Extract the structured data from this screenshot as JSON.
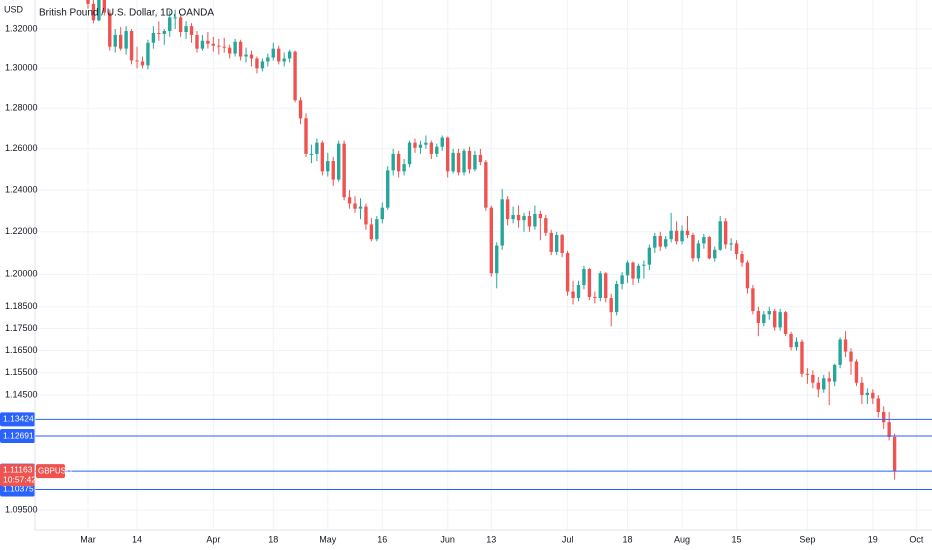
{
  "chart_data": {
    "type": "candlestick",
    "title": "British Pound / U.S. Dollar, 1D, OANDA",
    "currency": "USD",
    "log_scale": true,
    "grid": true,
    "up_color": "#26a69a",
    "down_color": "#ef5350",
    "line_color": "#2962ff",
    "ylim": [
      1.0865,
      1.335
    ],
    "yticks": [
      {
        "value": 1.32,
        "label": "1.32000"
      },
      {
        "value": 1.3,
        "label": "1.30000"
      },
      {
        "value": 1.28,
        "label": "1.28000"
      },
      {
        "value": 1.26,
        "label": "1.26000"
      },
      {
        "value": 1.24,
        "label": "1.24000"
      },
      {
        "value": 1.22,
        "label": "1.22000"
      },
      {
        "value": 1.2,
        "label": "1.20000"
      },
      {
        "value": 1.185,
        "label": "1.18500"
      },
      {
        "value": 1.175,
        "label": "1.17500"
      },
      {
        "value": 1.165,
        "label": "1.16500"
      },
      {
        "value": 1.155,
        "label": "1.15500"
      },
      {
        "value": 1.145,
        "label": "1.14500"
      },
      {
        "value": 1.095,
        "label": "1.09500"
      }
    ],
    "xlim": [
      -9.72,
      154.86
    ],
    "xticks": [
      {
        "value": 0,
        "label": "Mar"
      },
      {
        "value": 9,
        "label": "14"
      },
      {
        "value": 23,
        "label": "Apr"
      },
      {
        "value": 34,
        "label": "18"
      },
      {
        "value": 44,
        "label": "May"
      },
      {
        "value": 54,
        "label": "16"
      },
      {
        "value": 66,
        "label": "Jun"
      },
      {
        "value": 74,
        "label": "13"
      },
      {
        "value": 88,
        "label": "Jul"
      },
      {
        "value": 99,
        "label": "18"
      },
      {
        "value": 109,
        "label": "Aug"
      },
      {
        "value": 119,
        "label": "15"
      },
      {
        "value": 132,
        "label": "Sep"
      },
      {
        "value": 144,
        "label": "19"
      },
      {
        "value": 152,
        "label": "Oct"
      }
    ],
    "price_lines": [
      1.13424,
      1.12691,
      1.10375
    ],
    "marker_labels": [
      1.11184
    ],
    "last_price": 1.11163,
    "symbol": "GBPUSD",
    "countdown": "10:57:42",
    "x": [
      0,
      1,
      2,
      3,
      4,
      5,
      6,
      7,
      8,
      9,
      10,
      11,
      12,
      13,
      14,
      15,
      16,
      17,
      18,
      19,
      20,
      21,
      22,
      23,
      24,
      25,
      26,
      27,
      28,
      29,
      30,
      31,
      32,
      33,
      34,
      35,
      36,
      37,
      38,
      39,
      40,
      41,
      42,
      43,
      44,
      45,
      46,
      47,
      48,
      49,
      50,
      51,
      52,
      53,
      54,
      55,
      56,
      57,
      58,
      59,
      60,
      61,
      62,
      63,
      64,
      65,
      66,
      67,
      68,
      69,
      70,
      71,
      72,
      73,
      74,
      75,
      76,
      77,
      78,
      79,
      80,
      81,
      82,
      83,
      84,
      85,
      86,
      87,
      88,
      89,
      90,
      91,
      92,
      93,
      94,
      95,
      96,
      97,
      98,
      99,
      100,
      101,
      102,
      103,
      104,
      105,
      106,
      107,
      108,
      109,
      110,
      111,
      112,
      113,
      114,
      115,
      116,
      117,
      118,
      119,
      120,
      121,
      122,
      123,
      124,
      125,
      126,
      127,
      128,
      129,
      130,
      131,
      132,
      133,
      134,
      135,
      136,
      137,
      138,
      139,
      140,
      141,
      142,
      143,
      144,
      145,
      146,
      147,
      148
    ],
    "ohlc": [
      [
        1.34,
        1.3438,
        1.3305,
        1.333
      ],
      [
        1.333,
        1.335,
        1.323,
        1.3245
      ],
      [
        1.3245,
        1.338,
        1.324,
        1.3365
      ],
      [
        1.3365,
        1.339,
        1.327,
        1.3285
      ],
      [
        1.3285,
        1.33,
        1.309,
        1.311
      ],
      [
        1.311,
        1.32,
        1.308,
        1.317
      ],
      [
        1.317,
        1.321,
        1.309,
        1.31
      ],
      [
        1.31,
        1.3215,
        1.307,
        1.319
      ],
      [
        1.319,
        1.32,
        1.302,
        1.304
      ],
      [
        1.304,
        1.311,
        1.3,
        1.3035
      ],
      [
        1.3035,
        1.306,
        1.3,
        1.3015
      ],
      [
        1.3015,
        1.3145,
        1.2995,
        1.313
      ],
      [
        1.313,
        1.3215,
        1.31,
        1.318
      ],
      [
        1.318,
        1.324,
        1.314,
        1.3175
      ],
      [
        1.3175,
        1.32,
        1.312,
        1.319
      ],
      [
        1.319,
        1.3295,
        1.316,
        1.326
      ],
      [
        1.326,
        1.33,
        1.32,
        1.326
      ],
      [
        1.326,
        1.3275,
        1.316,
        1.3185
      ],
      [
        1.3185,
        1.324,
        1.315,
        1.3215
      ],
      [
        1.3215,
        1.323,
        1.313,
        1.317
      ],
      [
        1.317,
        1.319,
        1.308,
        1.31
      ],
      [
        1.31,
        1.317,
        1.309,
        1.314
      ],
      [
        1.314,
        1.3185,
        1.31,
        1.3125
      ],
      [
        1.3125,
        1.316,
        1.3085,
        1.3115
      ],
      [
        1.3115,
        1.315,
        1.307,
        1.311
      ],
      [
        1.311,
        1.3155,
        1.308,
        1.3105
      ],
      [
        1.3105,
        1.312,
        1.305,
        1.3075
      ],
      [
        1.3075,
        1.315,
        1.306,
        1.3135
      ],
      [
        1.3135,
        1.3145,
        1.304,
        1.306
      ],
      [
        1.306,
        1.3105,
        1.303,
        1.307
      ],
      [
        1.307,
        1.309,
        1.301,
        1.305
      ],
      [
        1.305,
        1.306,
        1.2975,
        1.3
      ],
      [
        1.3,
        1.305,
        1.2985,
        1.3035
      ],
      [
        1.3035,
        1.3075,
        1.301,
        1.3055
      ],
      [
        1.3055,
        1.313,
        1.304,
        1.31
      ],
      [
        1.31,
        1.3115,
        1.302,
        1.3035
      ],
      [
        1.3035,
        1.308,
        1.301,
        1.305
      ],
      [
        1.305,
        1.3095,
        1.303,
        1.3085
      ],
      [
        1.3085,
        1.309,
        1.283,
        1.284
      ],
      [
        1.284,
        1.2855,
        1.272,
        1.275
      ],
      [
        1.275,
        1.2775,
        1.256,
        1.2575
      ],
      [
        1.2575,
        1.262,
        1.253,
        1.2575
      ],
      [
        1.2575,
        1.265,
        1.254,
        1.263
      ],
      [
        1.263,
        1.264,
        1.247,
        1.249
      ],
      [
        1.249,
        1.258,
        1.2465,
        1.254
      ],
      [
        1.254,
        1.256,
        1.242,
        1.245
      ],
      [
        1.245,
        1.264,
        1.244,
        1.2625
      ],
      [
        1.2625,
        1.264,
        1.235,
        1.2365
      ],
      [
        1.2365,
        1.24,
        1.231,
        1.2335
      ],
      [
        1.2335,
        1.237,
        1.229,
        1.231
      ],
      [
        1.231,
        1.236,
        1.226,
        1.232
      ],
      [
        1.232,
        1.2335,
        1.221,
        1.2235
      ],
      [
        1.2235,
        1.2265,
        1.2155,
        1.2165
      ],
      [
        1.2165,
        1.2275,
        1.2155,
        1.226
      ],
      [
        1.226,
        1.234,
        1.224,
        1.2315
      ],
      [
        1.2315,
        1.2515,
        1.2305,
        1.2495
      ],
      [
        1.2495,
        1.26,
        1.247,
        1.2575
      ],
      [
        1.2575,
        1.259,
        1.246,
        1.249
      ],
      [
        1.249,
        1.255,
        1.247,
        1.2525
      ],
      [
        1.2525,
        1.264,
        1.251,
        1.263
      ],
      [
        1.263,
        1.265,
        1.258,
        1.2605
      ],
      [
        1.2605,
        1.264,
        1.2575,
        1.262
      ],
      [
        1.262,
        1.2665,
        1.26,
        1.263
      ],
      [
        1.263,
        1.264,
        1.255,
        1.2575
      ],
      [
        1.2575,
        1.2625,
        1.256,
        1.261
      ],
      [
        1.261,
        1.2665,
        1.259,
        1.2655
      ],
      [
        1.2655,
        1.266,
        1.246,
        1.249
      ],
      [
        1.249,
        1.26,
        1.248,
        1.258
      ],
      [
        1.258,
        1.26,
        1.247,
        1.2485
      ],
      [
        1.2485,
        1.26,
        1.247,
        1.259
      ],
      [
        1.259,
        1.261,
        1.248,
        1.25
      ],
      [
        1.25,
        1.259,
        1.249,
        1.257
      ],
      [
        1.257,
        1.26,
        1.252,
        1.2535
      ],
      [
        1.2535,
        1.2545,
        1.23,
        1.2315
      ],
      [
        1.2315,
        1.2325,
        1.199,
        1.2005
      ],
      [
        1.2005,
        1.215,
        1.1935,
        1.2135
      ],
      [
        1.2135,
        1.2405,
        1.2115,
        1.2355
      ],
      [
        1.2355,
        1.237,
        1.223,
        1.226
      ],
      [
        1.226,
        1.232,
        1.224,
        1.228
      ],
      [
        1.228,
        1.2325,
        1.222,
        1.2255
      ],
      [
        1.2255,
        1.229,
        1.22,
        1.2275
      ],
      [
        1.2275,
        1.23,
        1.22,
        1.2225
      ],
      [
        1.2225,
        1.2325,
        1.221,
        1.2285
      ],
      [
        1.2285,
        1.23,
        1.216,
        1.2265
      ],
      [
        1.2265,
        1.228,
        1.218,
        1.2195
      ],
      [
        1.2195,
        1.221,
        1.209,
        1.2105
      ],
      [
        1.2105,
        1.22,
        1.209,
        1.2185
      ],
      [
        1.2185,
        1.219,
        1.208,
        1.21
      ],
      [
        1.21,
        1.211,
        1.19,
        1.192
      ],
      [
        1.192,
        1.197,
        1.186,
        1.189
      ],
      [
        1.189,
        1.197,
        1.1875,
        1.195
      ],
      [
        1.195,
        1.204,
        1.193,
        1.2025
      ],
      [
        1.2025,
        1.203,
        1.188,
        1.1895
      ],
      [
        1.1895,
        1.192,
        1.1865,
        1.189
      ],
      [
        1.189,
        1.2015,
        1.1875,
        1.2005
      ],
      [
        1.2005,
        1.201,
        1.187,
        1.189
      ],
      [
        1.189,
        1.191,
        1.176,
        1.1825
      ],
      [
        1.1825,
        1.197,
        1.181,
        1.1955
      ],
      [
        1.1955,
        1.201,
        1.193,
        1.1995
      ],
      [
        1.1995,
        1.2065,
        1.196,
        1.2055
      ],
      [
        1.2055,
        1.206,
        1.195,
        1.198
      ],
      [
        1.198,
        1.205,
        1.196,
        1.204
      ],
      [
        1.204,
        1.2065,
        1.198,
        1.2045
      ],
      [
        1.2045,
        1.214,
        1.202,
        1.2125
      ],
      [
        1.2125,
        1.2195,
        1.21,
        1.218
      ],
      [
        1.218,
        1.22,
        1.211,
        1.213
      ],
      [
        1.213,
        1.218,
        1.212,
        1.2165
      ],
      [
        1.2165,
        1.229,
        1.215,
        1.2205
      ],
      [
        1.2205,
        1.225,
        1.214,
        1.2155
      ],
      [
        1.2155,
        1.223,
        1.214,
        1.2205
      ],
      [
        1.2205,
        1.2275,
        1.217,
        1.2185
      ],
      [
        1.2185,
        1.2195,
        1.206,
        1.2075
      ],
      [
        1.2075,
        1.216,
        1.206,
        1.2145
      ],
      [
        1.2145,
        1.219,
        1.212,
        1.2175
      ],
      [
        1.2175,
        1.218,
        1.207,
        1.2075
      ],
      [
        1.2075,
        1.213,
        1.206,
        1.2115
      ],
      [
        1.2115,
        1.2275,
        1.211,
        1.225
      ],
      [
        1.225,
        1.2265,
        1.212,
        1.214
      ],
      [
        1.214,
        1.217,
        1.211,
        1.2145
      ],
      [
        1.2145,
        1.216,
        1.207,
        1.2095
      ],
      [
        1.2095,
        1.211,
        1.2035,
        1.2055
      ],
      [
        1.2055,
        1.2065,
        1.191,
        1.1935
      ],
      [
        1.1935,
        1.195,
        1.1815,
        1.183
      ],
      [
        1.183,
        1.185,
        1.1715,
        1.1775
      ],
      [
        1.1775,
        1.183,
        1.176,
        1.1815
      ],
      [
        1.1815,
        1.185,
        1.179,
        1.183
      ],
      [
        1.183,
        1.184,
        1.174,
        1.1755
      ],
      [
        1.1755,
        1.184,
        1.174,
        1.1825
      ],
      [
        1.1825,
        1.183,
        1.1715,
        1.1725
      ],
      [
        1.1725,
        1.1735,
        1.165,
        1.1665
      ],
      [
        1.1665,
        1.171,
        1.165,
        1.169
      ],
      [
        1.169,
        1.17,
        1.153,
        1.1545
      ],
      [
        1.1545,
        1.157,
        1.15,
        1.154
      ],
      [
        1.154,
        1.156,
        1.148,
        1.1505
      ],
      [
        1.1505,
        1.153,
        1.144,
        1.1475
      ],
      [
        1.1475,
        1.154,
        1.146,
        1.1525
      ],
      [
        1.1525,
        1.1555,
        1.1405,
        1.151
      ],
      [
        1.151,
        1.159,
        1.149,
        1.1585
      ],
      [
        1.1585,
        1.171,
        1.157,
        1.17
      ],
      [
        1.17,
        1.1738,
        1.162,
        1.1645
      ],
      [
        1.1645,
        1.166,
        1.154,
        1.16
      ],
      [
        1.16,
        1.161,
        1.149,
        1.1505
      ],
      [
        1.1505,
        1.153,
        1.141,
        1.145
      ],
      [
        1.145,
        1.148,
        1.141,
        1.146
      ],
      [
        1.146,
        1.1475,
        1.141,
        1.1435
      ],
      [
        1.1435,
        1.145,
        1.135,
        1.1375
      ],
      [
        1.1375,
        1.14,
        1.13,
        1.133
      ],
      [
        1.133,
        1.1375,
        1.125,
        1.1265
      ],
      [
        1.1265,
        1.128,
        1.108,
        1.11163
      ]
    ]
  }
}
